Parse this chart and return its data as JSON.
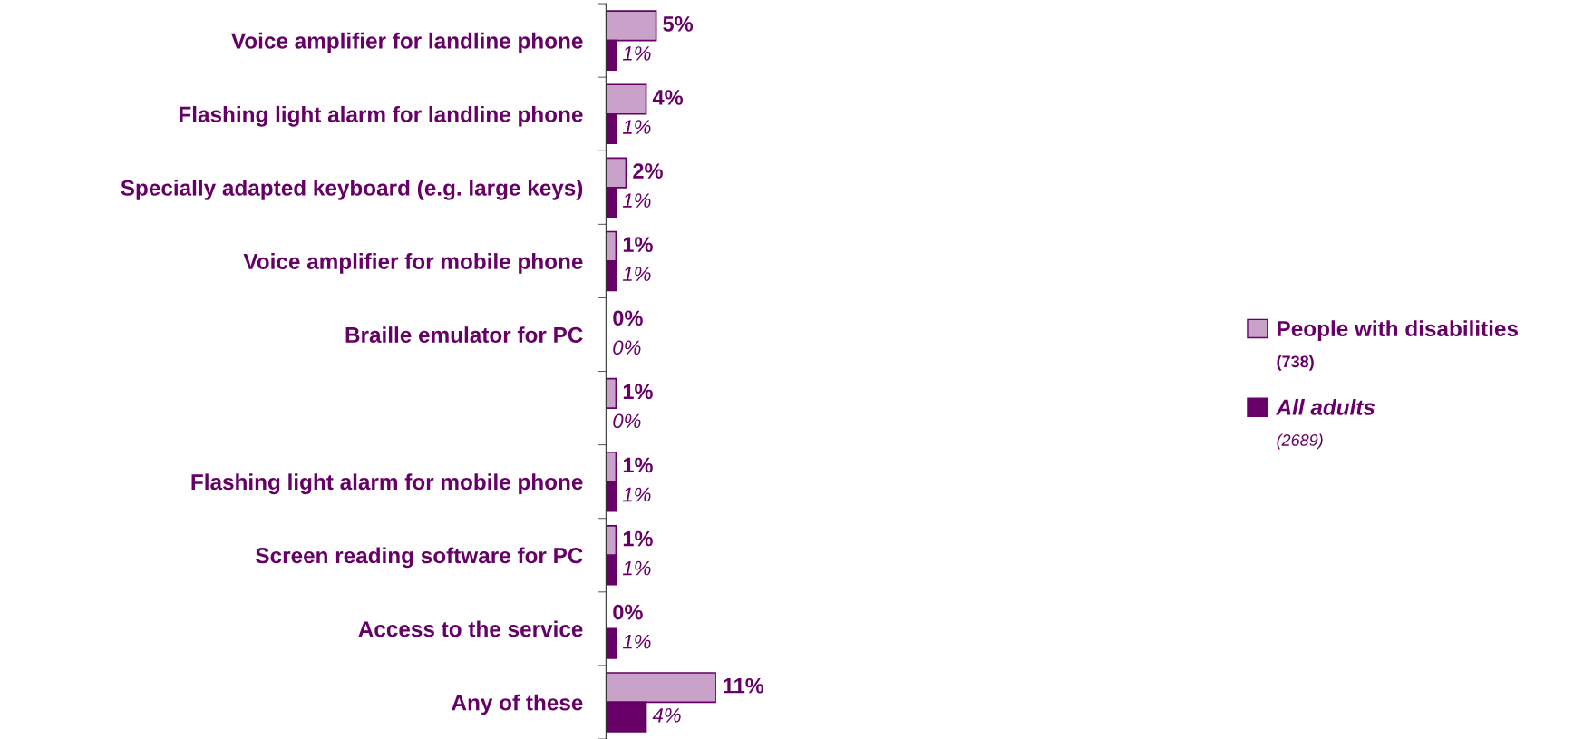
{
  "chart_data": {
    "type": "bar",
    "orientation": "horizontal",
    "categories": [
      "Voice amplifier for landline phone",
      "Flashing light alarm for landline phone",
      "Specially adapted keyboard (e.g. large keys)",
      "Voice amplifier for mobile phone",
      "Braille emulator for PC",
      null,
      "Flashing light alarm for mobile phone",
      "Screen reading software for PC",
      "Access to the service",
      "Any of these"
    ],
    "series": [
      {
        "name": "People with disabilities",
        "color": "#c8a2c8",
        "values": [
          5,
          4,
          2,
          1,
          0,
          1,
          1,
          1,
          0,
          11
        ],
        "value_labels": [
          "5%",
          "4%",
          "2%",
          "1%",
          "0%",
          "1%",
          "1%",
          "1%",
          "0%",
          "11%"
        ]
      },
      {
        "name": "All adults",
        "color": "#660066",
        "values": [
          1,
          1,
          1,
          1,
          0,
          0,
          1,
          1,
          1,
          4
        ],
        "value_labels": [
          "1%",
          "1%",
          "1%",
          "1%",
          "0%",
          "0%",
          "1%",
          "1%",
          "1%",
          "4%"
        ]
      }
    ],
    "legend": "right",
    "grid": false,
    "annotations": [
      "(738)",
      "(2689)"
    ]
  }
}
